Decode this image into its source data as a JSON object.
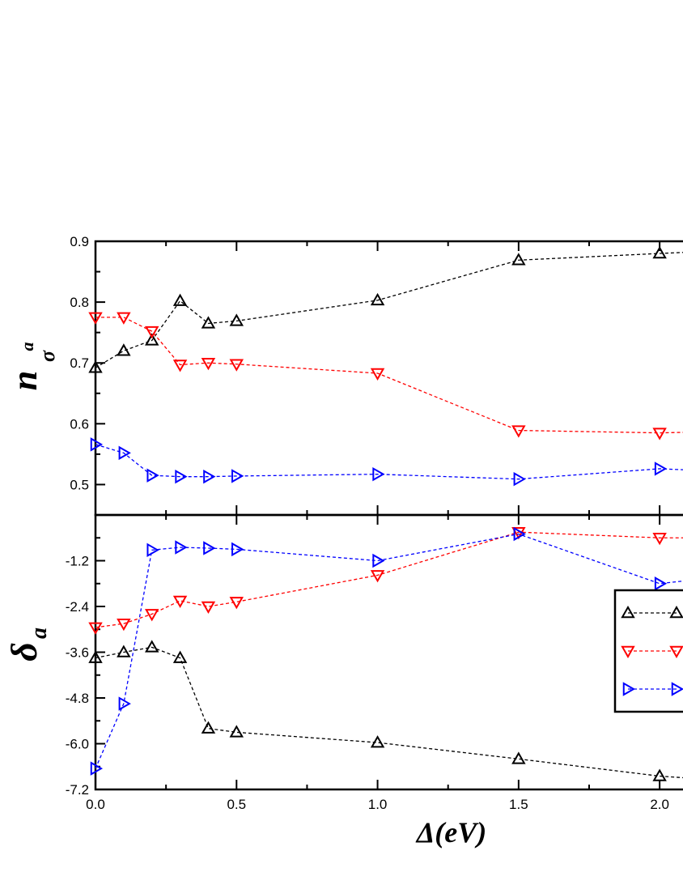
{
  "chart_data": [
    {
      "type": "line",
      "panel": "top",
      "ylabel_main": "n",
      "ylabel_sup": "a",
      "ylabel_sub": "σ",
      "xlim": [
        0.0,
        2.1
      ],
      "ylim": [
        0.45,
        0.9
      ],
      "yticks": [
        {
          "value": 0.5,
          "label": "0.5"
        },
        {
          "value": 0.6,
          "label": "0.6"
        },
        {
          "value": 0.7,
          "label": "0.7"
        },
        {
          "value": 0.8,
          "label": "0.8"
        },
        {
          "value": 0.9,
          "label": "0.9"
        }
      ],
      "series": [
        {
          "color": "#000000",
          "marker": "triangle-up",
          "x": [
            0.0,
            0.1,
            0.2,
            0.3,
            0.4,
            0.5,
            1.0,
            1.5,
            2.0,
            2.1
          ],
          "y": [
            0.692,
            0.72,
            0.737,
            0.802,
            0.765,
            0.769,
            0.803,
            0.869,
            0.88,
            0.882
          ]
        },
        {
          "color": "#ff0000",
          "marker": "triangle-down",
          "x": [
            0.0,
            0.1,
            0.2,
            0.3,
            0.4,
            0.5,
            1.0,
            1.5,
            2.0,
            2.1
          ],
          "y": [
            0.775,
            0.775,
            0.752,
            0.697,
            0.7,
            0.698,
            0.683,
            0.589,
            0.585,
            0.586
          ]
        },
        {
          "color": "#0000ff",
          "marker": "triangle-right",
          "x": [
            0.0,
            0.1,
            0.2,
            0.3,
            0.4,
            0.5,
            1.0,
            1.5,
            2.0,
            2.1
          ],
          "y": [
            0.566,
            0.552,
            0.515,
            0.513,
            0.513,
            0.514,
            0.517,
            0.509,
            0.526,
            0.524
          ]
        }
      ]
    },
    {
      "type": "line",
      "panel": "bottom",
      "ylabel_main": "δ",
      "ylabel_sub": "a",
      "xlabel": "Δ(eV)",
      "xlim": [
        0.0,
        2.1
      ],
      "ylim": [
        -7.2,
        0.0
      ],
      "xticks": [
        {
          "value": 0.0,
          "label": "0.0"
        },
        {
          "value": 0.5,
          "label": "0.5"
        },
        {
          "value": 1.0,
          "label": "1.0"
        },
        {
          "value": 1.5,
          "label": "1.5"
        },
        {
          "value": 2.0,
          "label": "2.0"
        }
      ],
      "yticks": [
        {
          "value": -7.2,
          "label": "-7.2"
        },
        {
          "value": -6.0,
          "label": "-6.0"
        },
        {
          "value": -4.8,
          "label": "-4.8"
        },
        {
          "value": -3.6,
          "label": "-3.6"
        },
        {
          "value": -2.4,
          "label": "-2.4"
        },
        {
          "value": -1.2,
          "label": "-1.2"
        }
      ],
      "series": [
        {
          "color": "#000000",
          "marker": "triangle-up",
          "x": [
            0.0,
            0.1,
            0.2,
            0.3,
            0.4,
            0.5,
            1.0,
            1.5,
            2.0,
            2.1
          ],
          "y": [
            -3.75,
            -3.6,
            -3.47,
            -3.75,
            -5.6,
            -5.7,
            -5.97,
            -6.4,
            -6.85,
            -6.9
          ]
        },
        {
          "color": "#ff0000",
          "marker": "triangle-down",
          "x": [
            0.0,
            0.1,
            0.2,
            0.3,
            0.4,
            0.5,
            1.0,
            1.5,
            2.0,
            2.1
          ],
          "y": [
            -2.95,
            -2.85,
            -2.6,
            -2.25,
            -2.4,
            -2.28,
            -1.58,
            -0.45,
            -0.6,
            -0.6
          ]
        },
        {
          "color": "#0000ff",
          "marker": "triangle-right",
          "x": [
            0.0,
            0.1,
            0.2,
            0.3,
            0.4,
            0.5,
            1.0,
            1.5,
            2.0,
            2.1
          ],
          "y": [
            -6.65,
            -4.95,
            -0.92,
            -0.85,
            -0.87,
            -0.9,
            -1.2,
            -0.5,
            -1.8,
            -1.72
          ]
        }
      ]
    }
  ],
  "legend": {
    "position": "right",
    "entries": [
      {
        "color": "#000000",
        "marker": "triangle-up"
      },
      {
        "color": "#ff0000",
        "marker": "triangle-down"
      },
      {
        "color": "#0000ff",
        "marker": "triangle-right"
      }
    ]
  }
}
